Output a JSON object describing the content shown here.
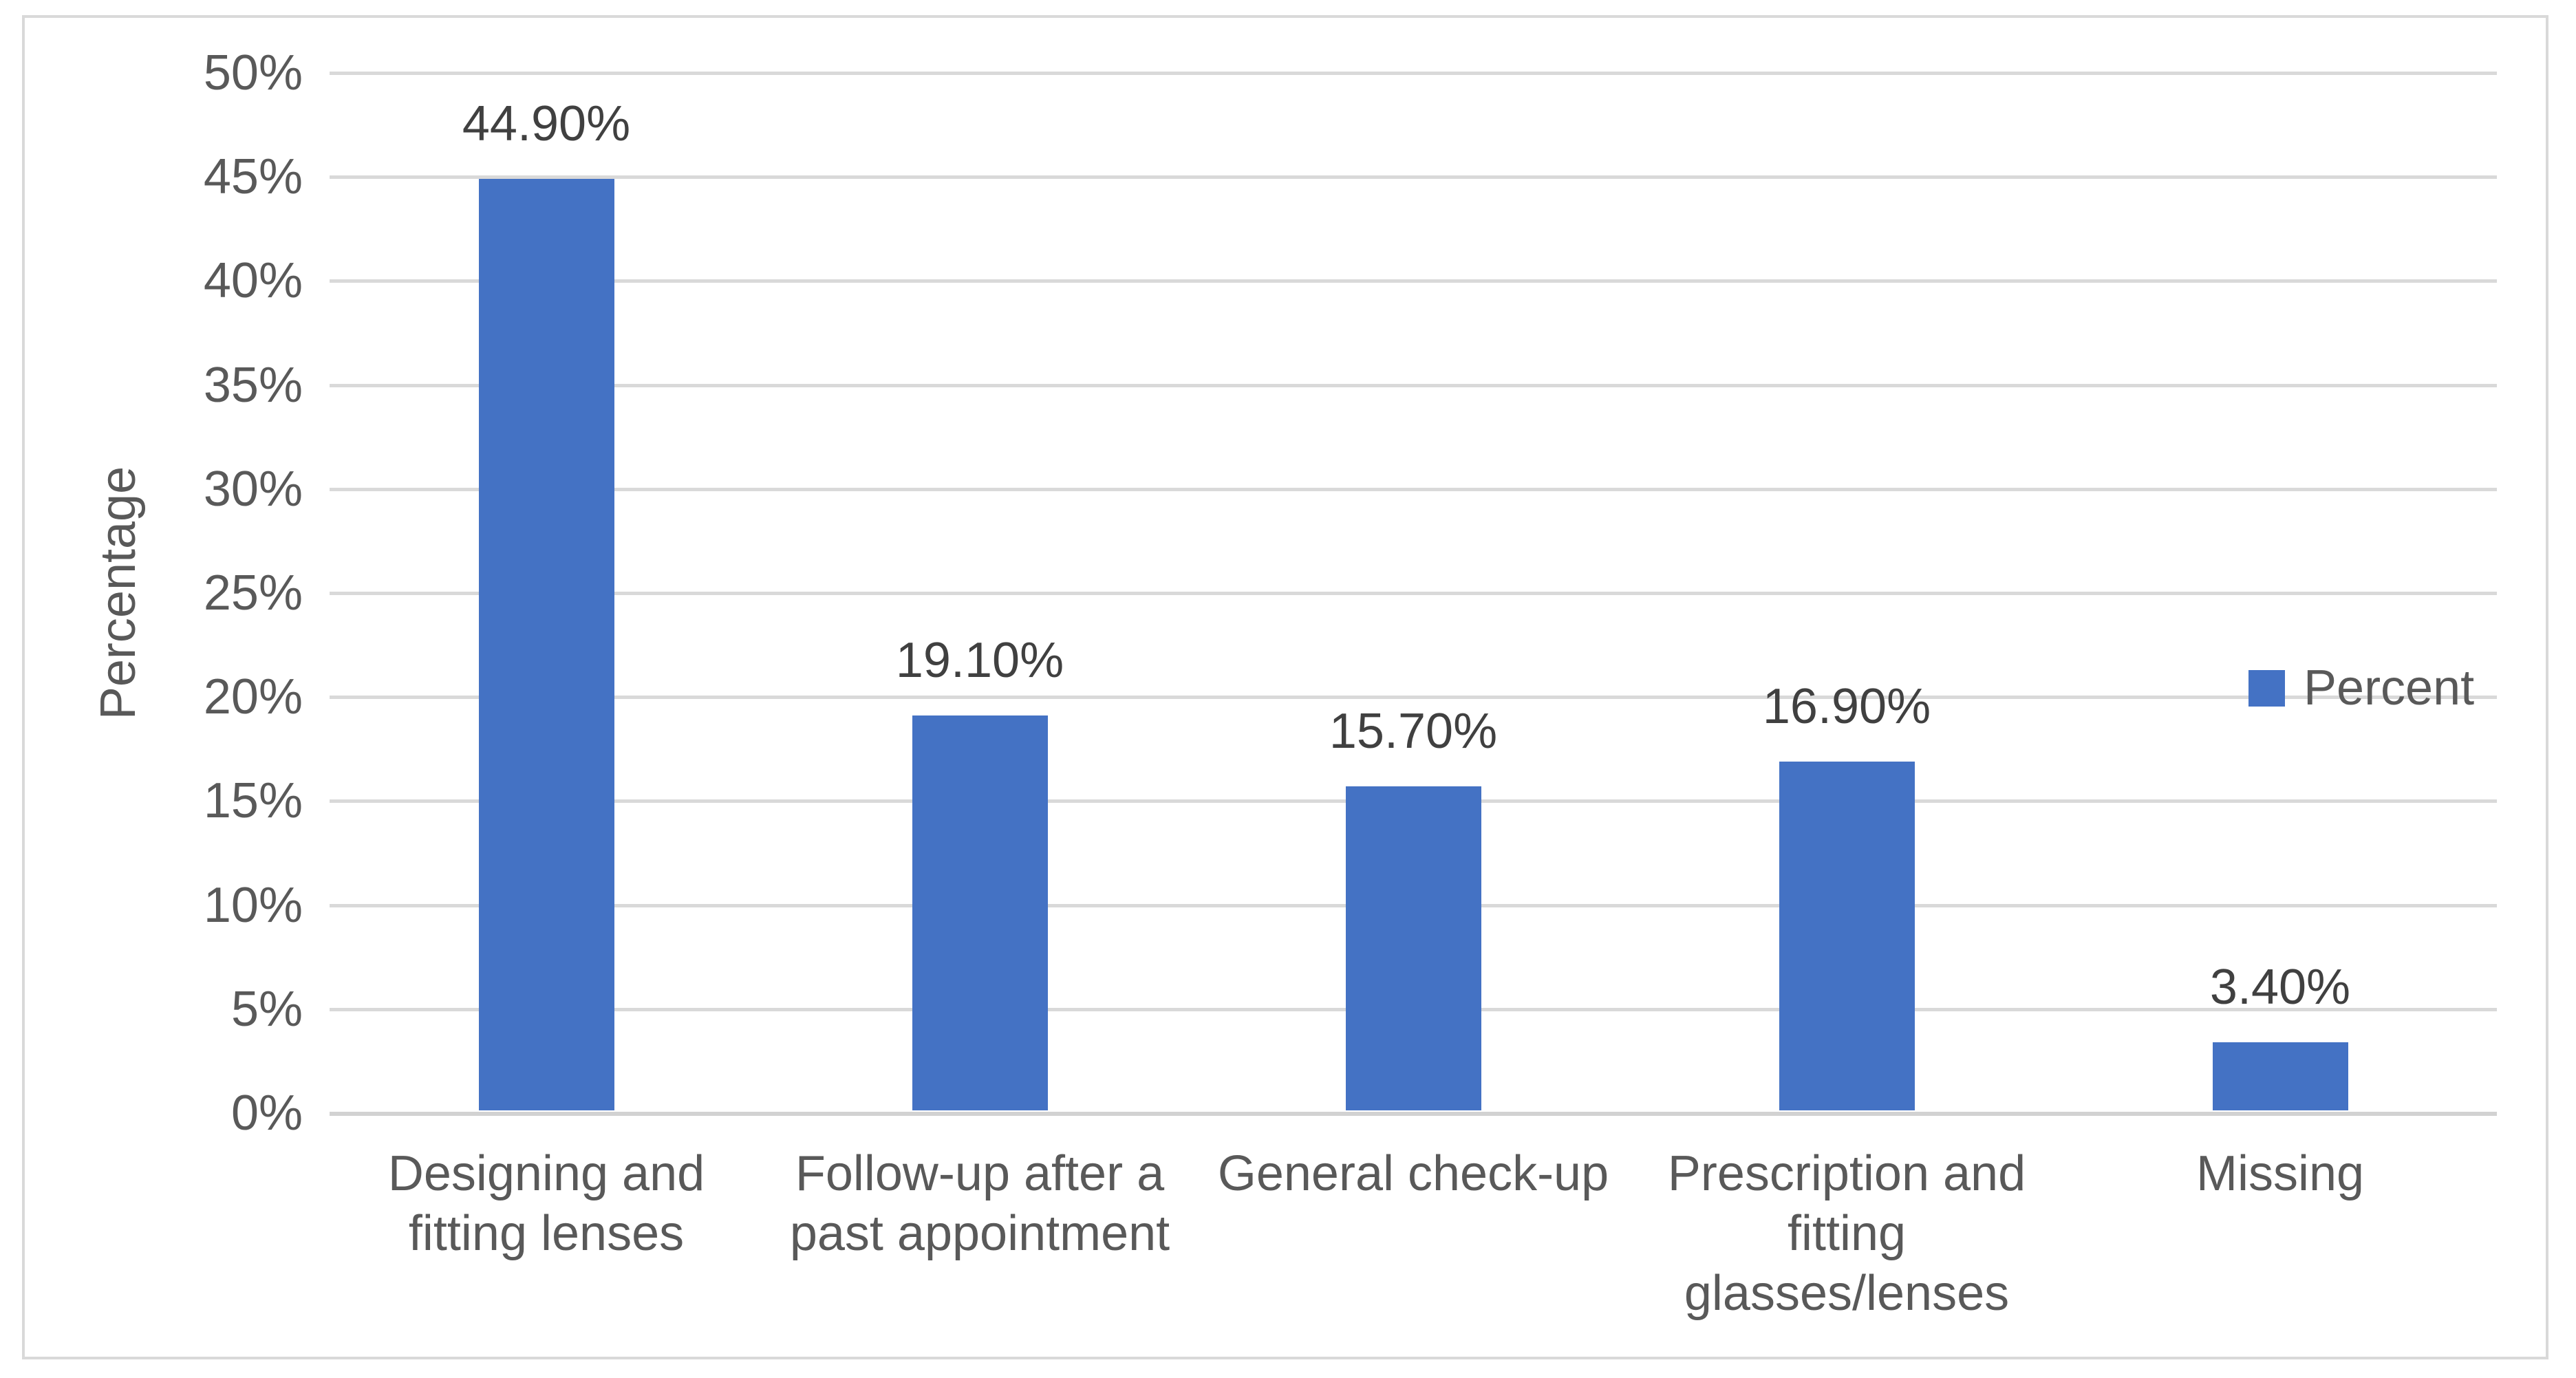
{
  "chart_data": {
    "type": "bar",
    "title": "",
    "categories": [
      "Designing and fitting lenses",
      "Follow-up after a past appointment",
      "General check-up",
      "Prescription and fitting glasses/lenses",
      "Missing"
    ],
    "series": [
      {
        "name": "Percent",
        "values": [
          44.9,
          19.1,
          15.7,
          16.9,
          3.4
        ]
      }
    ],
    "data_labels": [
      "44.90%",
      "19.10%",
      "15.70%",
      "16.90%",
      "3.40%"
    ],
    "xlabel": "",
    "ylabel": "Percentage",
    "ylim": [
      0,
      50
    ],
    "ytick_step": 5,
    "ytick_labels": [
      "0%",
      "5%",
      "10%",
      "15%",
      "20%",
      "25%",
      "30%",
      "35%",
      "40%",
      "45%",
      "50%"
    ],
    "grid": "horizontal",
    "legend": {
      "label": "Percent",
      "position": "right"
    },
    "colors": {
      "bar": "#4472C4",
      "gridline": "#D9D9D9",
      "axis_line": "#D2D2D2",
      "tick_text": "#595959",
      "category_text": "#595959",
      "data_label_text": "#404040",
      "legend_text": "#595959",
      "ylabel_text": "#595959",
      "frame_border": "#D9D9D9",
      "background": "#FFFFFF"
    }
  }
}
